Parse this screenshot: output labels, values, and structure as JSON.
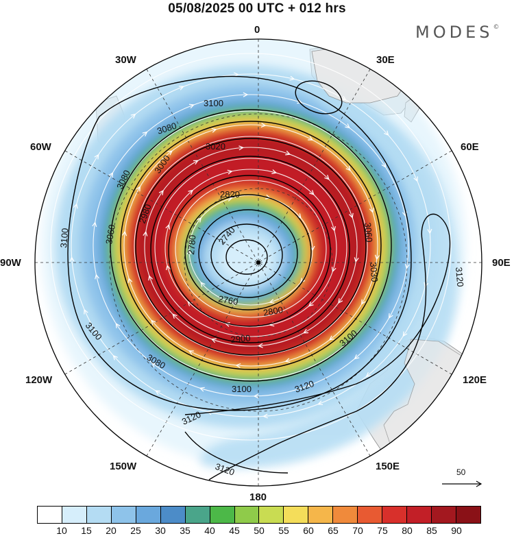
{
  "title": "05/08/2025  00 UTC  + 012 hrs",
  "brand": "MODES",
  "brand_mark": "©",
  "longitude_labels": {
    "n": "0",
    "e30": "30E",
    "e60": "60E",
    "e90": "90E",
    "e120": "120E",
    "e150": "150E",
    "s": "180",
    "w150": "150W",
    "w120": "120W",
    "w90": "90W",
    "w60": "60W",
    "w30": "30W"
  },
  "contour_labels": {
    "c3100_a": "3100",
    "c3080_a": "3080",
    "c3020": "3020",
    "c3000": "3000",
    "c2820": "2820",
    "c3080_b": "3080",
    "c2980": "2980",
    "c3060_w": "3060",
    "c3100_w": "3100",
    "c2740": "2740",
    "c2780": "2780",
    "c2760": "2760",
    "c3060_e": "3060",
    "c3030_e": "3030",
    "c3120_e": "3120",
    "c2800": "2800",
    "c2900": "2900",
    "c3100_se": "3100",
    "c3100_sw": "3100",
    "c3080_sw": "3080",
    "c3100_s": "3100",
    "c3120_s": "3120",
    "c3120_sw": "3120",
    "c3120_bot": "3120"
  },
  "scale_arrow_label": "50",
  "colorbar": {
    "ticks": [
      "10",
      "15",
      "20",
      "25",
      "30",
      "35",
      "40",
      "45",
      "50",
      "55",
      "60",
      "65",
      "70",
      "75",
      "80",
      "85",
      "90"
    ],
    "colors": [
      "#ffffff",
      "#d6eefb",
      "#b4dcf3",
      "#8ec3ea",
      "#6aa8dd",
      "#4c8cc8",
      "#4aa58a",
      "#4cb848",
      "#8fcb4a",
      "#c9dc52",
      "#f4dd5a",
      "#f5b64a",
      "#f08a3b",
      "#e85a32",
      "#d8302b",
      "#c21f27",
      "#a3181f",
      "#8a1117"
    ]
  },
  "colors": {
    "contour": "#000000",
    "land": "#e9e9e9",
    "coast": "#888888",
    "arrow": "#ffffff"
  }
}
